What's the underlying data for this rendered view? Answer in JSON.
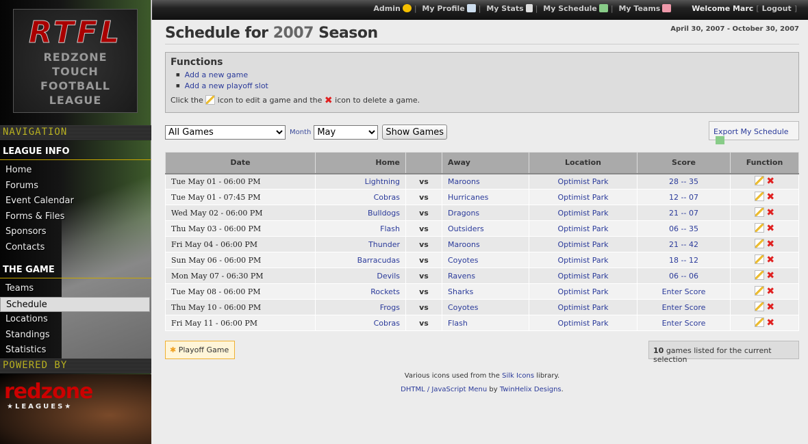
{
  "sidebar": {
    "logo": {
      "abbr": "RTFL",
      "lines": [
        "REDZONE",
        "TOUCH",
        "FOOTBALL",
        "LEAGUE"
      ]
    },
    "navigation_label": "NAVIGATION",
    "league_info": {
      "heading": "LEAGUE INFO",
      "items": [
        "Home",
        "Forums",
        "Event Calendar",
        "Forms & Files",
        "Sponsors",
        "Contacts"
      ]
    },
    "the_game": {
      "heading": "THE GAME",
      "items": [
        "Teams",
        "Schedule",
        "Locations",
        "Standings",
        "Statistics"
      ],
      "active": "Schedule"
    },
    "powered_by": "POWERED BY",
    "powered_logo": {
      "name": "redzone",
      "tag": "★LEAGUES★"
    }
  },
  "topbar": {
    "admin": "Admin",
    "profile": "My Profile",
    "stats": "My Stats",
    "schedule": "My Schedule",
    "teams": "My Teams",
    "welcome": "Welcome Marc",
    "logout": "Logout"
  },
  "page": {
    "title_pre": "Schedule for",
    "year": "2007",
    "title_post": "Season",
    "range": "April 30, 2007 - October 30, 2007"
  },
  "functions": {
    "heading": "Functions",
    "links": [
      "Add a new game",
      "Add a new playoff slot"
    ],
    "help_1": "Click the",
    "help_2": "icon to edit a game and the",
    "help_3": "icon to delete a game."
  },
  "filters": {
    "games": "All Games",
    "month_label": "Month",
    "month": "May",
    "show": "Show Games",
    "export": "Export My Schedule"
  },
  "table": {
    "headers": [
      "Date",
      "Home",
      "",
      "Away",
      "Location",
      "Score",
      "Function"
    ],
    "rows": [
      [
        "Tue May 01 - 06:00 PM",
        "Lightning",
        "vs",
        "Maroons",
        "Optimist Park",
        "28 -- 35"
      ],
      [
        "Tue May 01 - 07:45 PM",
        "Cobras",
        "vs",
        "Hurricanes",
        "Optimist Park",
        "12 -- 07"
      ],
      [
        "Wed May 02 - 06:00 PM",
        "Bulldogs",
        "vs",
        "Dragons",
        "Optimist Park",
        "21 -- 07"
      ],
      [
        "Thu May 03 - 06:00 PM",
        "Flash",
        "vs",
        "Outsiders",
        "Optimist Park",
        "06 -- 35"
      ],
      [
        "Fri May 04 - 06:00 PM",
        "Thunder",
        "vs",
        "Maroons",
        "Optimist Park",
        "21 -- 42"
      ],
      [
        "Sun May 06 - 06:00 PM",
        "Barracudas",
        "vs",
        "Coyotes",
        "Optimist Park",
        "18 -- 12"
      ],
      [
        "Mon May 07 - 06:30 PM",
        "Devils",
        "vs",
        "Ravens",
        "Optimist Park",
        "06 -- 06"
      ],
      [
        "Tue May 08 - 06:00 PM",
        "Rockets",
        "vs",
        "Sharks",
        "Optimist Park",
        "Enter Score"
      ],
      [
        "Thu May 10 - 06:00 PM",
        "Frogs",
        "vs",
        "Coyotes",
        "Optimist Park",
        "Enter Score"
      ],
      [
        "Fri May 11 - 06:00 PM",
        "Cobras",
        "vs",
        "Flash",
        "Optimist Park",
        "Enter Score"
      ]
    ]
  },
  "playoff": "Playoff Game",
  "count": {
    "n": "10",
    "text": "games listed for the current selection"
  },
  "footer": {
    "l1_pre": "Various icons used from the",
    "l1_link": "Silk Icons",
    "l1_post": "library.",
    "l2_link1": "DHTML / JavaScript Menu",
    "l2_mid": "by",
    "l2_link2": "TwinHelix Designs",
    "l2_post": "."
  },
  "colors": {
    "link": "#2a3a9a",
    "delete": "#e02020",
    "header": "#aaaaaa"
  }
}
